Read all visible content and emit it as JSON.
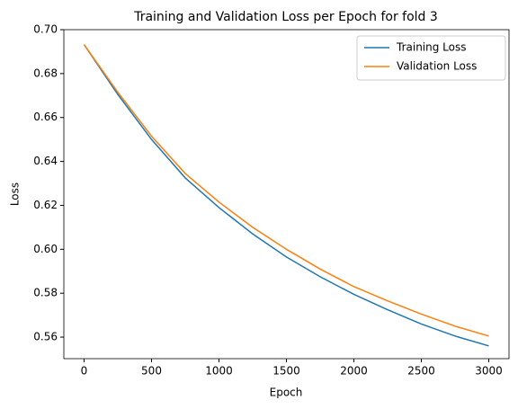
{
  "chart_data": {
    "type": "line",
    "title": "Training and Validation Loss per Epoch for fold 3",
    "xlabel": "Epoch",
    "ylabel": "Loss",
    "x": [
      0,
      250,
      500,
      750,
      1000,
      1250,
      1500,
      1750,
      2000,
      2250,
      2500,
      2750,
      3000
    ],
    "series": [
      {
        "name": "Training Loss",
        "color": "#1f77b4",
        "values": [
          0.6932,
          0.6705,
          0.65,
          0.6325,
          0.619,
          0.607,
          0.5965,
          0.5875,
          0.5795,
          0.5725,
          0.566,
          0.5605,
          0.556
        ]
      },
      {
        "name": "Validation Loss",
        "color": "#ff7f0e",
        "values": [
          0.6932,
          0.6715,
          0.6515,
          0.6345,
          0.6215,
          0.61,
          0.6,
          0.591,
          0.583,
          0.5765,
          0.5705,
          0.565,
          0.5605
        ]
      }
    ],
    "xlim": [
      -150,
      3150
    ],
    "xticks": [
      0,
      500,
      1000,
      1500,
      2000,
      2500,
      3000
    ],
    "ylim": [
      0.5502,
      0.7
    ],
    "yticks": [
      0.56,
      0.58,
      {
        "value": 0.6,
        "label": "0.60"
      },
      0.62,
      0.64,
      0.66,
      0.68,
      {
        "value": 0.7,
        "label": "0.70"
      }
    ],
    "legend": "upper right",
    "grid": false
  }
}
